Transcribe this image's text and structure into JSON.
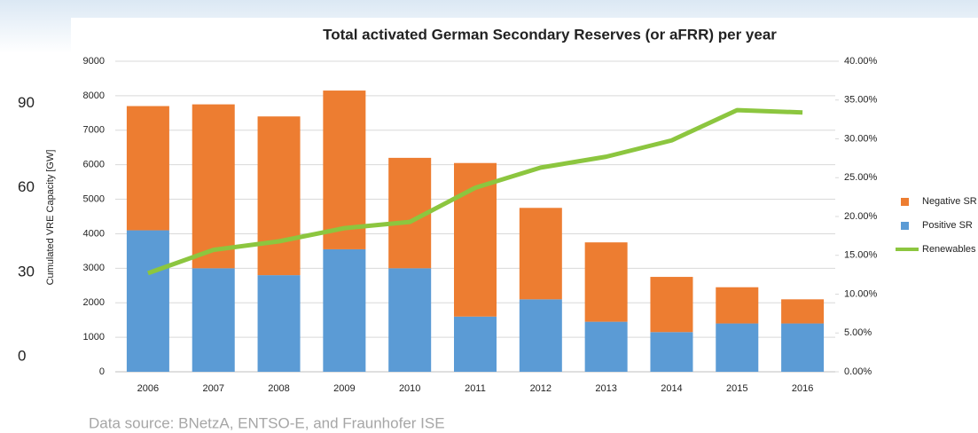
{
  "chart_data": {
    "type": "bar",
    "title": "Total activated German Secondary Reserves (or aFRR) per year",
    "ylabel": "Cumulated VRE Capacity [GW]",
    "source": "Data source: BNetzA, ENTSO-E, and Fraunhofer ISE",
    "categories": [
      "2006",
      "2007",
      "2008",
      "2009",
      "2010",
      "2011",
      "2012",
      "2013",
      "2014",
      "2015",
      "2016"
    ],
    "series": [
      {
        "name": "Negative SR",
        "type": "bar",
        "color": "#ed7d31",
        "values": [
          3600,
          4750,
          4600,
          4600,
          3200,
          4450,
          2650,
          2300,
          1600,
          1050,
          700
        ]
      },
      {
        "name": "Positive SR",
        "type": "bar",
        "color": "#5b9bd5",
        "values": [
          4100,
          3000,
          2800,
          3550,
          3000,
          1600,
          2100,
          1450,
          1150,
          1400,
          1400
        ]
      },
      {
        "name": "Renewables",
        "type": "line",
        "axis": "y2",
        "color": "#8cc63f",
        "values": [
          12.7,
          15.7,
          16.8,
          18.5,
          19.3,
          23.7,
          26.3,
          27.7,
          29.8,
          33.7,
          33.4
        ]
      }
    ],
    "stacked": true,
    "ylim": [
      0,
      9000
    ],
    "yticks": [
      0,
      1000,
      2000,
      3000,
      4000,
      5000,
      6000,
      7000,
      8000,
      9000
    ],
    "y2lim": [
      0,
      40
    ],
    "y2ticks": [
      {
        "value": 0,
        "label": "0.00%"
      },
      {
        "value": 5,
        "label": "5.00%"
      },
      {
        "value": 10,
        "label": "10.00%"
      },
      {
        "value": 15,
        "label": "15.00%"
      },
      {
        "value": 20,
        "label": "20.00%"
      },
      {
        "value": 25,
        "label": "25.00%"
      },
      {
        "value": 30,
        "label": "30.00%"
      },
      {
        "value": 35,
        "label": "35.00%"
      },
      {
        "value": 40,
        "label": "40.00%"
      }
    ],
    "y3lim": [
      -5.4,
      105
    ],
    "y3ticks": [
      90,
      60,
      30,
      0
    ],
    "grid": true,
    "legend": "right"
  }
}
